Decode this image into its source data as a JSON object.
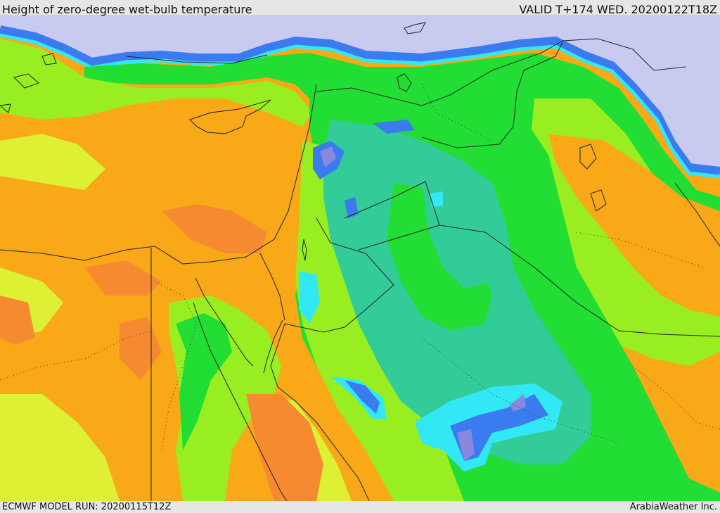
{
  "header": {
    "title": "Height of zero-degree wet-bulb temperature",
    "valid": "VALID T+174 WED. 20200122T18Z"
  },
  "footer": {
    "model_run": "ECMWF MODEL RUN: 20200115T12Z",
    "credit": "ArabiaWeather Inc."
  },
  "map": {
    "field": "zero-degree wet-bulb temperature height",
    "colors": {
      "very_low": "#8888dd",
      "low_blue": "#3a7cf0",
      "cyan": "#33e8f5",
      "teal": "#33cc99",
      "green": "#22dd33",
      "lime": "#99ee22",
      "yellow": "#ddf033",
      "orange": "#f9a818",
      "dark_orange": "#f58a30",
      "sea_cold": "#c8caf0",
      "border": "#222222"
    }
  }
}
